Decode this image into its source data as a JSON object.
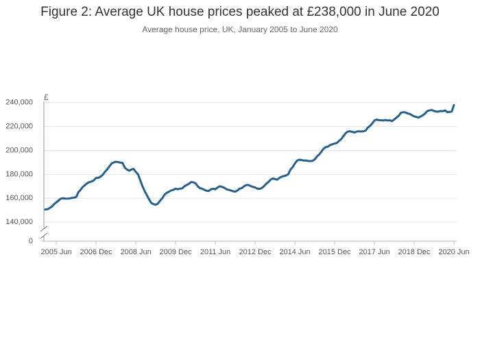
{
  "chart_data": {
    "type": "line",
    "title": "Figure 2: Average UK house prices peaked at £238,000 in June 2020",
    "subtitle": "Average house price, UK, January 2005 to June 2020",
    "y_label": "£",
    "x": [
      "2005 Jan",
      "2005 Feb",
      "2005 Mar",
      "2005 Apr",
      "2005 May",
      "2005 Jun",
      "2005 Jul",
      "2005 Aug",
      "2005 Sep",
      "2005 Oct",
      "2005 Nov",
      "2005 Dec",
      "2006 Jan",
      "2006 Feb",
      "2006 Mar",
      "2006 Apr",
      "2006 May",
      "2006 Jun",
      "2006 Jul",
      "2006 Aug",
      "2006 Sep",
      "2006 Oct",
      "2006 Nov",
      "2006 Dec",
      "2007 Jan",
      "2007 Feb",
      "2007 Mar",
      "2007 Apr",
      "2007 May",
      "2007 Jun",
      "2007 Jul",
      "2007 Aug",
      "2007 Sep",
      "2007 Oct",
      "2007 Nov",
      "2007 Dec",
      "2008 Jan",
      "2008 Feb",
      "2008 Mar",
      "2008 Apr",
      "2008 May",
      "2008 Jun",
      "2008 Jul",
      "2008 Aug",
      "2008 Sep",
      "2008 Oct",
      "2008 Nov",
      "2008 Dec",
      "2009 Jan",
      "2009 Feb",
      "2009 Mar",
      "2009 Apr",
      "2009 May",
      "2009 Jun",
      "2009 Jul",
      "2009 Aug",
      "2009 Sep",
      "2009 Oct",
      "2009 Nov",
      "2009 Dec",
      "2010 Jan",
      "2010 Feb",
      "2010 Mar",
      "2010 Apr",
      "2010 May",
      "2010 Jun",
      "2010 Jul",
      "2010 Aug",
      "2010 Sep",
      "2010 Oct",
      "2010 Nov",
      "2010 Dec",
      "2011 Jan",
      "2011 Feb",
      "2011 Mar",
      "2011 Apr",
      "2011 May",
      "2011 Jun",
      "2011 Jul",
      "2011 Aug",
      "2011 Sep",
      "2011 Oct",
      "2011 Nov",
      "2011 Dec",
      "2012 Jan",
      "2012 Feb",
      "2012 Mar",
      "2012 Apr",
      "2012 May",
      "2012 Jun",
      "2012 Jul",
      "2012 Aug",
      "2012 Sep",
      "2012 Oct",
      "2012 Nov",
      "2012 Dec",
      "2013 Jan",
      "2013 Feb",
      "2013 Mar",
      "2013 Apr",
      "2013 May",
      "2013 Jun",
      "2013 Jul",
      "2013 Aug",
      "2013 Sep",
      "2013 Oct",
      "2013 Nov",
      "2013 Dec",
      "2014 Jan",
      "2014 Feb",
      "2014 Mar",
      "2014 Apr",
      "2014 May",
      "2014 Jun",
      "2014 Jul",
      "2014 Aug",
      "2014 Sep",
      "2014 Oct",
      "2014 Nov",
      "2014 Dec",
      "2015 Jan",
      "2015 Feb",
      "2015 Mar",
      "2015 Apr",
      "2015 May",
      "2015 Jun",
      "2015 Jul",
      "2015 Aug",
      "2015 Sep",
      "2015 Oct",
      "2015 Nov",
      "2015 Dec",
      "2016 Jan",
      "2016 Feb",
      "2016 Mar",
      "2016 Apr",
      "2016 May",
      "2016 Jun",
      "2016 Jul",
      "2016 Aug",
      "2016 Sep",
      "2016 Oct",
      "2016 Nov",
      "2016 Dec",
      "2017 Jan",
      "2017 Feb",
      "2017 Mar",
      "2017 Apr",
      "2017 May",
      "2017 Jun",
      "2017 Jul",
      "2017 Aug",
      "2017 Sep",
      "2017 Oct",
      "2017 Nov",
      "2017 Dec",
      "2018 Jan",
      "2018 Feb",
      "2018 Mar",
      "2018 Apr",
      "2018 May",
      "2018 Jun",
      "2018 Jul",
      "2018 Aug",
      "2018 Sep",
      "2018 Oct",
      "2018 Nov",
      "2018 Dec",
      "2019 Jan",
      "2019 Feb",
      "2019 Mar",
      "2019 Apr",
      "2019 May",
      "2019 Jun",
      "2019 Jul",
      "2019 Aug",
      "2019 Sep",
      "2019 Oct",
      "2019 Nov",
      "2019 Dec",
      "2020 Jan",
      "2020 Feb",
      "2020 Mar",
      "2020 Apr",
      "2020 May",
      "2020 Jun"
    ],
    "series": [
      {
        "name": "Average house price",
        "color": "#206095",
        "values": [
          150500,
          150800,
          151800,
          153000,
          155000,
          156500,
          158000,
          159500,
          160000,
          159700,
          159600,
          159800,
          160200,
          160500,
          161000,
          165000,
          167000,
          169500,
          171000,
          172500,
          173500,
          174000,
          175000,
          177000,
          177000,
          178000,
          179500,
          182000,
          184000,
          186500,
          189000,
          190000,
          190500,
          190200,
          189800,
          189500,
          185500,
          184000,
          183000,
          184000,
          184500,
          182000,
          180000,
          175000,
          170000,
          166000,
          162500,
          159000,
          156000,
          155000,
          154500,
          155500,
          158000,
          160000,
          163000,
          164500,
          165500,
          166500,
          167000,
          168000,
          167500,
          168000,
          168200,
          170000,
          171000,
          172000,
          173500,
          173300,
          172500,
          170000,
          168500,
          168000,
          167000,
          166200,
          166000,
          167500,
          168000,
          167500,
          169000,
          170000,
          169500,
          168800,
          167500,
          167000,
          166500,
          165800,
          165500,
          166500,
          168000,
          168500,
          170000,
          171000,
          171000,
          170200,
          169500,
          169000,
          168000,
          167800,
          168500,
          170000,
          172000,
          173500,
          175500,
          176500,
          176000,
          175500,
          177000,
          178000,
          178500,
          179000,
          180000,
          184000,
          186000,
          189000,
          191500,
          192200,
          192000,
          191500,
          191600,
          191200,
          191000,
          191300,
          192500,
          195000,
          196500,
          199000,
          201500,
          202800,
          203200,
          204500,
          205200,
          205800,
          206200,
          208000,
          209500,
          212000,
          214500,
          215800,
          216000,
          215500,
          215000,
          215800,
          216000,
          215800,
          216000,
          216500,
          219000,
          220500,
          222500,
          225000,
          225800,
          225300,
          225200,
          225000,
          225500,
          225000,
          225200,
          224500,
          226000,
          227500,
          229000,
          231500,
          232000,
          231800,
          231000,
          230500,
          229500,
          228500,
          228000,
          227500,
          228500,
          229500,
          231000,
          233000,
          233500,
          233800,
          233000,
          232500,
          232500,
          233000,
          232800,
          233500,
          232000,
          232200,
          232500,
          238000
        ]
      }
    ],
    "xticks": [
      "2005 Jun",
      "2006 Dec",
      "2008 Jun",
      "2009 Dec",
      "2011 Jun",
      "2012 Dec",
      "2014 Jun",
      "2015 Dec",
      "2017 Jun",
      "2018 Dec",
      "2020 Jun"
    ],
    "ylim": [
      124000,
      241000
    ],
    "yticks": [
      0,
      {
        "value": 140000,
        "label": "140,000"
      },
      {
        "value": 160000,
        "label": "160,000"
      },
      {
        "value": 180000,
        "label": "180,000"
      },
      {
        "value": 200000,
        "label": "200,000"
      },
      {
        "value": 220000,
        "label": "220,000"
      },
      {
        "value": 240000,
        "label": "240,000"
      }
    ],
    "axis_break": true,
    "grid": true
  }
}
